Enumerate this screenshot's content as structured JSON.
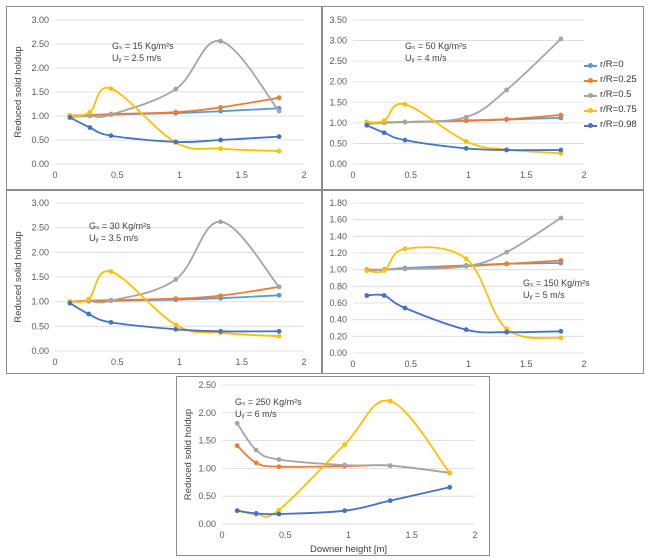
{
  "series_names": [
    "r/R=0",
    "r/R=0.25",
    "r/R=0.5",
    "r/R=0.75",
    "r/R=0.98"
  ],
  "series_colors": {
    "r/R=0": "#5b9bd5",
    "r/R=0.25": "#ed7d31",
    "r/R=0.5": "#a5a5a5",
    "r/R=0.75": "#ffc000",
    "r/R=0.98": "#4472c4"
  },
  "chart_data": [
    {
      "type": "line",
      "annotation": [
        "Gₛ = 15 Kg/m²s",
        "Uᵧ = 2.5 m/s"
      ],
      "ylabel": "Reduced solid holdup",
      "xlabel": "",
      "xlim": [
        0,
        2
      ],
      "ylim": [
        0,
        3
      ],
      "xticks": [
        "0",
        "0.5",
        "1",
        "1.5",
        "2"
      ],
      "yticks": [
        "0.00",
        "0.50",
        "1.00",
        "1.50",
        "2.00",
        "2.50",
        "3.00"
      ],
      "grid": true,
      "x": [
        0.12,
        0.28,
        0.45,
        0.97,
        1.33,
        1.8
      ],
      "series": [
        {
          "name": "r/R=0",
          "values": [
            1.0,
            1.02,
            1.03,
            1.06,
            1.1,
            1.16
          ]
        },
        {
          "name": "r/R=0.25",
          "values": [
            1.01,
            1.02,
            1.04,
            1.08,
            1.18,
            1.38
          ]
        },
        {
          "name": "r/R=0.5",
          "values": [
            0.98,
            1.0,
            1.03,
            1.56,
            2.56,
            1.1
          ]
        },
        {
          "name": "r/R=0.75",
          "values": [
            1.0,
            1.08,
            1.57,
            0.45,
            0.32,
            0.27
          ]
        },
        {
          "name": "r/R=0.98",
          "values": [
            0.97,
            0.76,
            0.59,
            0.46,
            0.5,
            0.57
          ]
        }
      ]
    },
    {
      "type": "line",
      "annotation": [
        "Gₛ = 50 Kg/m²s",
        "Uᵧ = 4 m/s"
      ],
      "ylabel": "",
      "xlabel": "",
      "xlim": [
        0,
        2
      ],
      "ylim": [
        0,
        3.5
      ],
      "xticks": [
        "0",
        "0.5",
        "1",
        "1.5",
        "2"
      ],
      "yticks": [
        "0.00",
        "0.50",
        "1.00",
        "1.50",
        "2.00",
        "2.50",
        "3.00",
        "3.50"
      ],
      "grid": true,
      "x": [
        0.12,
        0.27,
        0.45,
        0.98,
        1.33,
        1.8
      ],
      "series": [
        {
          "name": "r/R=0",
          "values": [
            1.0,
            1.01,
            1.02,
            1.05,
            1.08,
            1.12
          ]
        },
        {
          "name": "r/R=0.25",
          "values": [
            1.0,
            1.01,
            1.02,
            1.06,
            1.09,
            1.19
          ]
        },
        {
          "name": "r/R=0.5",
          "values": [
            0.97,
            1.0,
            1.02,
            1.14,
            1.8,
            3.04
          ]
        },
        {
          "name": "r/R=0.75",
          "values": [
            1.02,
            1.05,
            1.45,
            0.55,
            0.35,
            0.26
          ]
        },
        {
          "name": "r/R=0.98",
          "values": [
            0.94,
            0.76,
            0.58,
            0.38,
            0.34,
            0.34
          ]
        }
      ]
    },
    {
      "type": "line",
      "annotation": [
        "Gₛ = 30 Kg/m²s",
        "Uᵧ = 3.5 m/s"
      ],
      "ylabel": "Reduced solid holdup",
      "xlabel": "",
      "xlim": [
        0,
        2
      ],
      "ylim": [
        0,
        3
      ],
      "xticks": [
        "0",
        "0.5",
        "1",
        "1.5",
        "2"
      ],
      "yticks": [
        "0.00",
        "0.50",
        "1.00",
        "1.50",
        "2.00",
        "2.50",
        "3.00"
      ],
      "grid": true,
      "x": [
        0.12,
        0.27,
        0.45,
        0.97,
        1.33,
        1.8
      ],
      "series": [
        {
          "name": "r/R=0",
          "values": [
            1.0,
            1.01,
            1.02,
            1.04,
            1.07,
            1.13
          ]
        },
        {
          "name": "r/R=0.25",
          "values": [
            1.0,
            1.02,
            1.03,
            1.06,
            1.12,
            1.3
          ]
        },
        {
          "name": "r/R=0.5",
          "values": [
            1.0,
            1.01,
            1.02,
            1.45,
            2.62,
            1.3
          ]
        },
        {
          "name": "r/R=0.75",
          "values": [
            1.0,
            1.05,
            1.61,
            0.53,
            0.37,
            0.3
          ]
        },
        {
          "name": "r/R=0.98",
          "values": [
            0.97,
            0.75,
            0.58,
            0.44,
            0.4,
            0.4
          ]
        }
      ]
    },
    {
      "type": "line",
      "annotation": [
        "Gₛ = 150 Kg/m²s",
        "Uᵧ = 5 m/s"
      ],
      "ylabel": "",
      "xlabel": "",
      "xlim": [
        0,
        2
      ],
      "ylim": [
        0,
        1.8
      ],
      "xticks": [
        "0",
        "0.5",
        "1",
        "1.5",
        "2"
      ],
      "yticks": [
        "0.00",
        "0.20",
        "0.40",
        "0.60",
        "0.80",
        "1.00",
        "1.20",
        "1.40",
        "1.60",
        "1.80"
      ],
      "grid": true,
      "x": [
        0.12,
        0.27,
        0.45,
        0.98,
        1.33,
        1.8
      ],
      "series": [
        {
          "name": "r/R=0",
          "values": [
            1.0,
            1.0,
            1.02,
            1.05,
            1.07,
            1.08
          ]
        },
        {
          "name": "r/R=0.25",
          "values": [
            1.0,
            1.0,
            1.01,
            1.04,
            1.07,
            1.11
          ]
        },
        {
          "name": "r/R=0.5",
          "values": [
            0.99,
            1.0,
            1.01,
            1.04,
            1.21,
            1.62
          ]
        },
        {
          "name": "r/R=0.75",
          "values": [
            0.99,
            0.99,
            1.25,
            1.13,
            0.29,
            0.18
          ]
        },
        {
          "name": "r/R=0.98",
          "values": [
            0.69,
            0.69,
            0.54,
            0.28,
            0.25,
            0.26
          ]
        }
      ]
    },
    {
      "type": "line",
      "annotation": [
        "Gₛ = 250 Kg/m²s",
        "Uᵧ = 6 m/s"
      ],
      "ylabel": "Reduced solid holdup",
      "xlabel": "Downer height [m]",
      "xlim": [
        0,
        2
      ],
      "ylim": [
        0,
        2.5
      ],
      "xticks": [
        "0",
        "0.5",
        "1",
        "1.5",
        "2"
      ],
      "yticks": [
        "0.00",
        "0.50",
        "1.00",
        "1.50",
        "2.00",
        "2.50"
      ],
      "grid": true,
      "x": [
        0.12,
        0.27,
        0.45,
        0.97,
        1.33,
        1.8
      ],
      "series": [
        {
          "name": "r/R=0.25",
          "values": [
            1.41,
            1.1,
            1.03,
            1.04,
            1.05,
            0.92
          ]
        },
        {
          "name": "r/R=0.5",
          "values": [
            1.81,
            1.33,
            1.16,
            1.06,
            1.05,
            0.92
          ]
        },
        {
          "name": "r/R=0.75",
          "values": [
            0.24,
            0.18,
            0.25,
            1.43,
            2.21,
            0.92
          ]
        },
        {
          "name": "r/R=0.98",
          "values": [
            0.24,
            0.19,
            0.18,
            0.24,
            0.42,
            0.66
          ]
        }
      ]
    }
  ]
}
